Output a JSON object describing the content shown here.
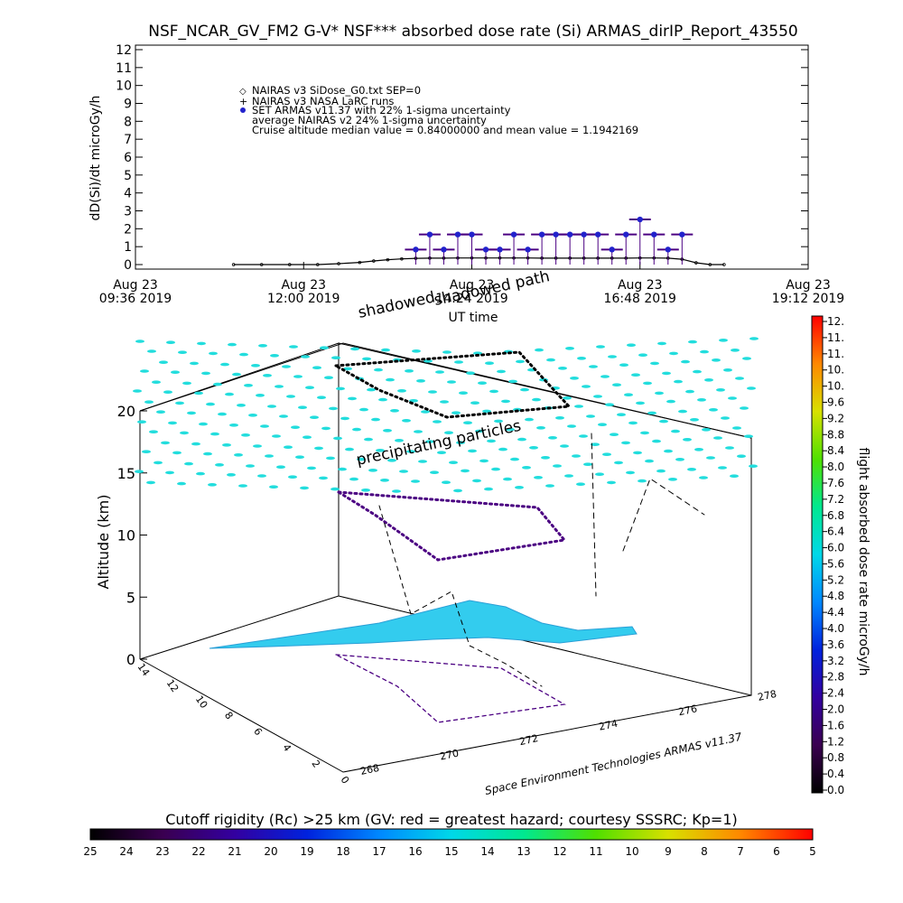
{
  "colors": {
    "nairas_sidose": "#000000",
    "nairas_larc": "#000000",
    "armas": "#2222cc",
    "armas_stem": "#4b0082",
    "particles": "#22dddd",
    "ground_track": "#33ccee",
    "colorbar_bottom": [
      "#000000",
      "#3a0050",
      "#3300a0",
      "#0022dd",
      "#0088ff",
      "#00d8e8",
      "#00e890",
      "#50e000",
      "#d8e000",
      "#ff8800",
      "#ff0000"
    ],
    "colorbar_right": [
      "#000000",
      "#3a0050",
      "#3300a0",
      "#0022dd",
      "#0088ff",
      "#00d8e8",
      "#00e890",
      "#50e000",
      "#d8e000",
      "#ff8800",
      "#ff0000"
    ]
  },
  "chart_data": [
    {
      "type": "scatter",
      "title": "NSF_NCAR_GV_FM2 G-V* NSF*** absorbed dose rate (Si) ARMAS_dirIP_Report_43550",
      "xlabel": "UT time",
      "ylabel": "dD(Si)/dt microGy/h",
      "ylim": [
        0,
        12
      ],
      "yticks": [
        "0",
        "1",
        "2",
        "3",
        "4",
        "5",
        "6",
        "7",
        "8",
        "9",
        "10",
        "11",
        "12"
      ],
      "xticks": [
        {
          "line1": "Aug 23",
          "line2": "09:36 2019",
          "t": 9.6
        },
        {
          "line1": "Aug 23",
          "line2": "12:00 2019",
          "t": 12.0
        },
        {
          "line1": "Aug 23",
          "line2": "14:24 2019",
          "t": 14.4
        },
        {
          "line1": "Aug 23",
          "line2": "16:48 2019",
          "t": 16.8
        },
        {
          "line1": "Aug 23",
          "line2": "19:12 2019",
          "t": 19.2
        }
      ],
      "xlim": [
        9.6,
        19.2
      ],
      "legend": {
        "placement": "top-left",
        "entries": [
          "NAIRAS v3 SiDose_G0.txt SEP=0",
          "NAIRAS v3 NASA LaRC runs",
          "SET ARMAS v11.37 with 22% 1-sigma uncertainty",
          "average NAIRAS v2 24% 1-sigma uncertainty",
          "Cruise altitude median value = 0.84000000 and mean value = 1.1942169"
        ]
      },
      "series": [
        {
          "name": "NAIRAS v3 SiDose_G0.txt SEP=0",
          "x": [
            11.0,
            11.4,
            11.8,
            12.2,
            12.5,
            12.8,
            13.0,
            13.2,
            13.4,
            13.6,
            13.8,
            14.0,
            14.2,
            14.4,
            14.6,
            14.8,
            15.0,
            15.2,
            15.4,
            15.6,
            15.8,
            16.0,
            16.2,
            16.4,
            16.6,
            16.8,
            17.0,
            17.2,
            17.4,
            17.6,
            17.8,
            18.0
          ],
          "values": [
            0.0,
            0.0,
            0.0,
            0.0,
            0.05,
            0.12,
            0.2,
            0.27,
            0.32,
            0.35,
            0.36,
            0.36,
            0.37,
            0.37,
            0.37,
            0.37,
            0.37,
            0.37,
            0.36,
            0.36,
            0.36,
            0.36,
            0.36,
            0.36,
            0.36,
            0.37,
            0.37,
            0.36,
            0.3,
            0.1,
            0.0,
            0.0
          ]
        },
        {
          "name": "SET ARMAS v11.37 with 22% 1-sigma uncertainty",
          "x": [
            13.6,
            13.8,
            14.0,
            14.2,
            14.4,
            14.6,
            14.8,
            15.0,
            15.2,
            15.4,
            15.6,
            15.8,
            16.0,
            16.2,
            16.4,
            16.6,
            16.8,
            17.0,
            17.2,
            17.4
          ],
          "values": [
            0.84,
            1.68,
            0.84,
            1.68,
            1.68,
            0.84,
            0.84,
            1.68,
            0.84,
            1.68,
            1.68,
            1.68,
            1.68,
            1.68,
            0.84,
            1.68,
            2.52,
            1.68,
            0.84,
            1.68
          ]
        }
      ]
    },
    {
      "type": "scatter",
      "title": "",
      "zlabel": "Altitude (km)",
      "zlim": [
        0,
        20
      ],
      "zticks": [
        "0",
        "5",
        "10",
        "15",
        "20"
      ],
      "xticks_depth": [
        "14",
        "12",
        "10",
        "8",
        "6",
        "4",
        "2",
        "0"
      ],
      "xticks_lon": [
        "268",
        "270",
        "272",
        "274",
        "276",
        "278"
      ],
      "annotations": [
        "shadowed",
        "shadowed path",
        "precipitating particles"
      ],
      "credit": "Space Environment Technologies ARMAS v11.37"
    }
  ],
  "colorbar_right": {
    "label": "flight absorbed dose rate microGy/h",
    "ticks": [
      "12.",
      "11.",
      "11.",
      "10.",
      "10.",
      "9.6",
      "9.2",
      "8.8",
      "8.4",
      "8.0",
      "7.6",
      "7.2",
      "6.8",
      "6.4",
      "6.0",
      "5.6",
      "5.2",
      "4.8",
      "4.4",
      "4.0",
      "3.6",
      "3.2",
      "2.8",
      "2.4",
      "2.0",
      "1.6",
      "1.2",
      "0.8",
      "0.4",
      "0.0"
    ]
  },
  "colorbar_bottom": {
    "label": "Cutoff rigidity (Rc) >25 km (GV: red = greatest hazard; courtesy SSSRC; Kp=1)",
    "ticks": [
      "25",
      "24",
      "23",
      "22",
      "21",
      "20",
      "19",
      "18",
      "17",
      "16",
      "15",
      "14",
      "13",
      "12",
      "11",
      "10",
      "9",
      "8",
      "7",
      "6",
      "5"
    ]
  }
}
